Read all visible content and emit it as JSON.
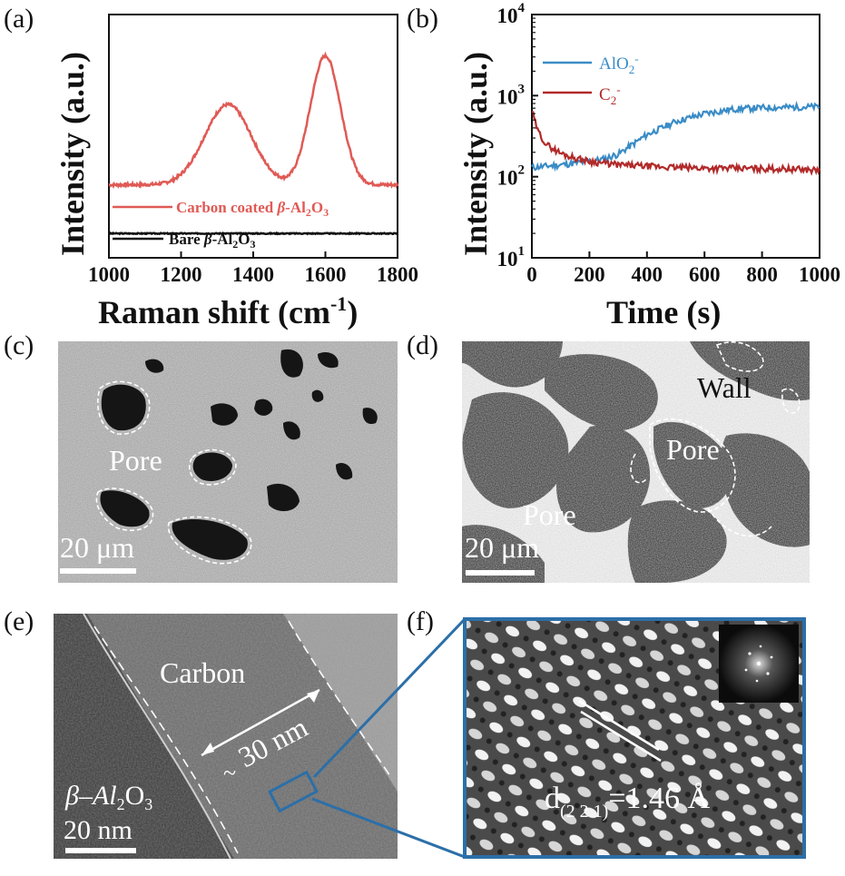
{
  "panels": {
    "a": "(a)",
    "b": "(b)",
    "c": "(c)",
    "d": "(d)",
    "e": "(e)",
    "f": "(f)"
  },
  "colors": {
    "raman_coated": "#e05a55",
    "raman_bare": "#111111",
    "alo2": "#3a8cc6",
    "c2": "#b22a2a",
    "frame_blue": "#2c6fa8"
  },
  "chart_data": [
    {
      "type": "line",
      "title": "",
      "xlabel": "Raman shift (cm-1)",
      "xlabel_main": "Raman shift (cm",
      "xlabel_sup": "-1",
      "xlabel_close": ")",
      "ylabel": "Intensity (a.u.)",
      "xlim": [
        1000,
        1800
      ],
      "xticks": [
        "1000",
        "1200",
        "1400",
        "1600",
        "1800"
      ],
      "grid": false,
      "legend": {
        "placement": "lower-left",
        "entries": [
          "Carbon coated β-Al2O3",
          "Bare β-Al2O3"
        ]
      },
      "series": [
        {
          "name": "Carbon coated β-Al2O3",
          "baseline": 0.3,
          "peaks": [
            {
              "x": 1330,
              "height": 0.33,
              "width": 65
            },
            {
              "x": 1600,
              "height": 0.53,
              "width": 42
            }
          ]
        },
        {
          "name": "Bare β-Al2O3",
          "baseline": 0.1,
          "peaks": []
        }
      ]
    },
    {
      "type": "line",
      "title": "",
      "xlabel": "Time (s)",
      "ylabel": "Intensity (a.u.)",
      "xlim": [
        0,
        1000
      ],
      "ylim": [
        10,
        10000
      ],
      "yscale": "log",
      "xticks": [
        "0",
        "200",
        "400",
        "600",
        "800",
        "1000"
      ],
      "yticks": [
        {
          "base": "10",
          "exp": "1"
        },
        {
          "base": "10",
          "exp": "2"
        },
        {
          "base": "10",
          "exp": "3"
        },
        {
          "base": "10",
          "exp": "4"
        }
      ],
      "grid": false,
      "legend": {
        "placement": "top-left",
        "entries": [
          "AlO2-",
          "C2-"
        ]
      },
      "series": [
        {
          "name": "AlO2-",
          "x": [
            0,
            100,
            200,
            250,
            300,
            400,
            500,
            600,
            700,
            800,
            900,
            1000
          ],
          "y": [
            130,
            140,
            155,
            165,
            190,
            330,
            480,
            600,
            680,
            710,
            720,
            730
          ]
        },
        {
          "name": "C2-",
          "x": [
            0,
            20,
            50,
            100,
            150,
            200,
            300,
            400,
            500,
            600,
            700,
            800,
            900,
            1000
          ],
          "y": [
            650,
            370,
            250,
            195,
            170,
            155,
            140,
            135,
            130,
            128,
            127,
            126,
            125,
            120
          ]
        }
      ]
    }
  ],
  "legend_a": {
    "coated_prefix": "Carbon coated ",
    "beta": "β",
    "coated_suffix": "-Al",
    "sub2": "2",
    "o": "O",
    "sub3": "3",
    "bare_prefix": "Bare "
  },
  "legend_b": {
    "alo2": "AlO",
    "alo2_sub": "2",
    "alo2_sup": "-",
    "c2": "C",
    "c2_sub": "2",
    "c2_sup": "-"
  },
  "sem_c": {
    "pore": "Pore",
    "scale": "20 μm"
  },
  "sem_d": {
    "wall": "Wall",
    "pore1": "Pore",
    "pore2": "Pore",
    "scale": "20 μm"
  },
  "tem_e": {
    "carbon": "Carbon",
    "thickness": "30 nm",
    "tilde": "~",
    "mat_beta": "β–Al",
    "mat_2": "2",
    "mat_o": "O",
    "mat_3": "3",
    "scale": "20 nm"
  },
  "hrtem_f": {
    "d": "d",
    "hkl": "(2 2 1)",
    "value": "=1.46 Å"
  }
}
